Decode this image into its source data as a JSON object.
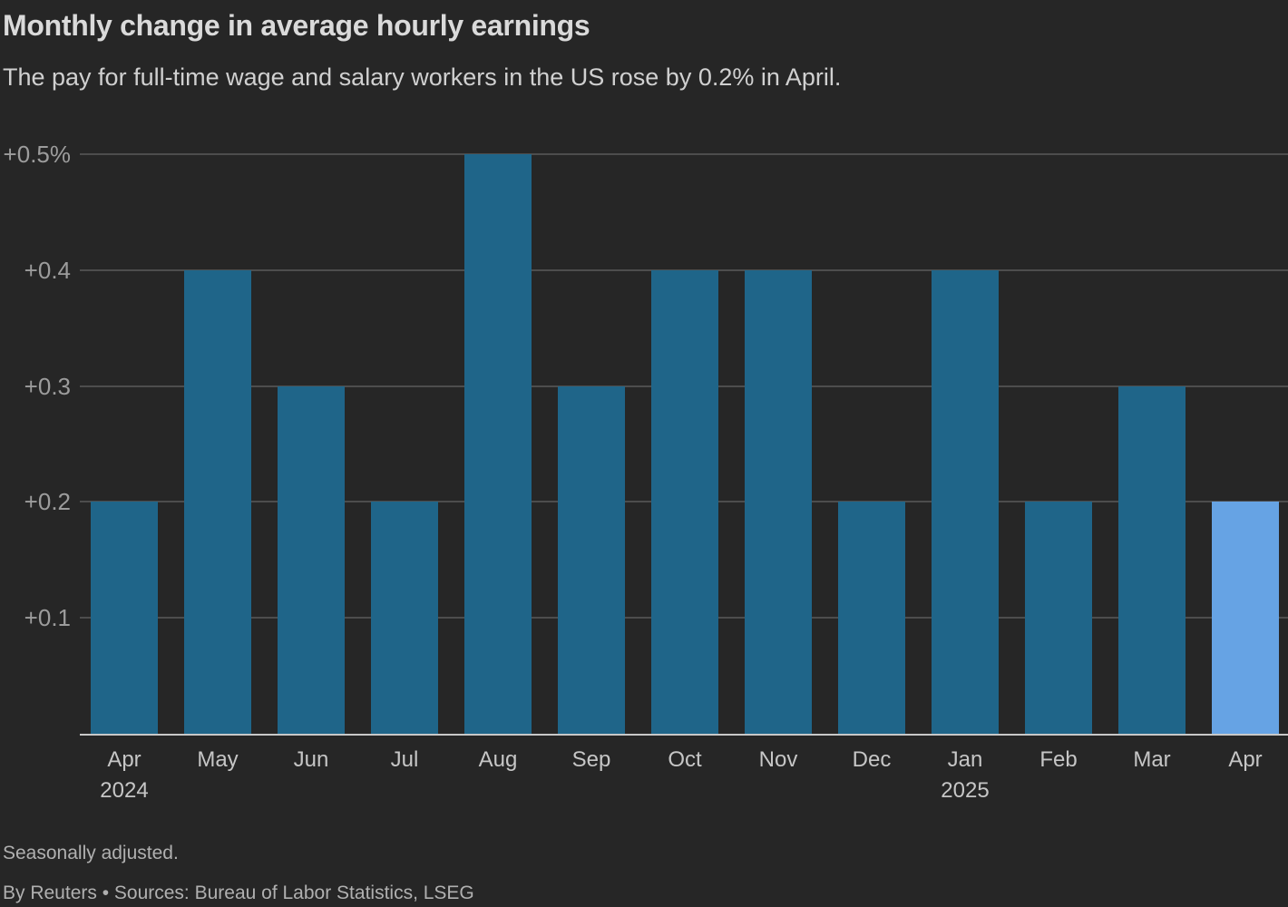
{
  "header": {
    "title": "Monthly change in average hourly earnings",
    "subtitle": "The pay for full-time wage and salary workers in the US rose by 0.2% in April."
  },
  "chart_data": {
    "type": "bar",
    "title": "Monthly change in average hourly earnings",
    "categories": [
      "Apr",
      "May",
      "Jun",
      "Jul",
      "Aug",
      "Sep",
      "Oct",
      "Nov",
      "Dec",
      "Jan",
      "Feb",
      "Mar",
      "Apr"
    ],
    "values": [
      0.2,
      0.4,
      0.3,
      0.2,
      0.5,
      0.3,
      0.4,
      0.4,
      0.2,
      0.4,
      0.2,
      0.3,
      0.2
    ],
    "year_labels": [
      {
        "index": 0,
        "label": "2024"
      },
      {
        "index": 9,
        "label": "2025"
      }
    ],
    "highlight_index": 12,
    "yticks": [
      {
        "value": 0.5,
        "label": "+0.5%"
      },
      {
        "value": 0.4,
        "label": "+0.4"
      },
      {
        "value": 0.3,
        "label": "+0.3"
      },
      {
        "value": 0.2,
        "label": "+0.2"
      },
      {
        "value": 0.1,
        "label": "+0.1"
      }
    ],
    "ylim": [
      0,
      0.5
    ],
    "xlabel": "",
    "ylabel": "",
    "grid": true,
    "legend": "none",
    "bar_color": "#1F6589",
    "highlight_color": "#66A3E4"
  },
  "footer": {
    "note": "Seasonally adjusted.",
    "byline": "By Reuters • Sources: Bureau of Labor Statistics, LSEG"
  },
  "colors": {
    "background": "#262626",
    "gridline": "#4D4D4D",
    "baseline": "#C8C8C8",
    "title_text": "#DADADA",
    "subtitle_text": "#D0D0D0",
    "ytick_text": "#9C9C9C",
    "xtick_text": "#C6C6C6",
    "footer_text": "#B0B0B0"
  }
}
